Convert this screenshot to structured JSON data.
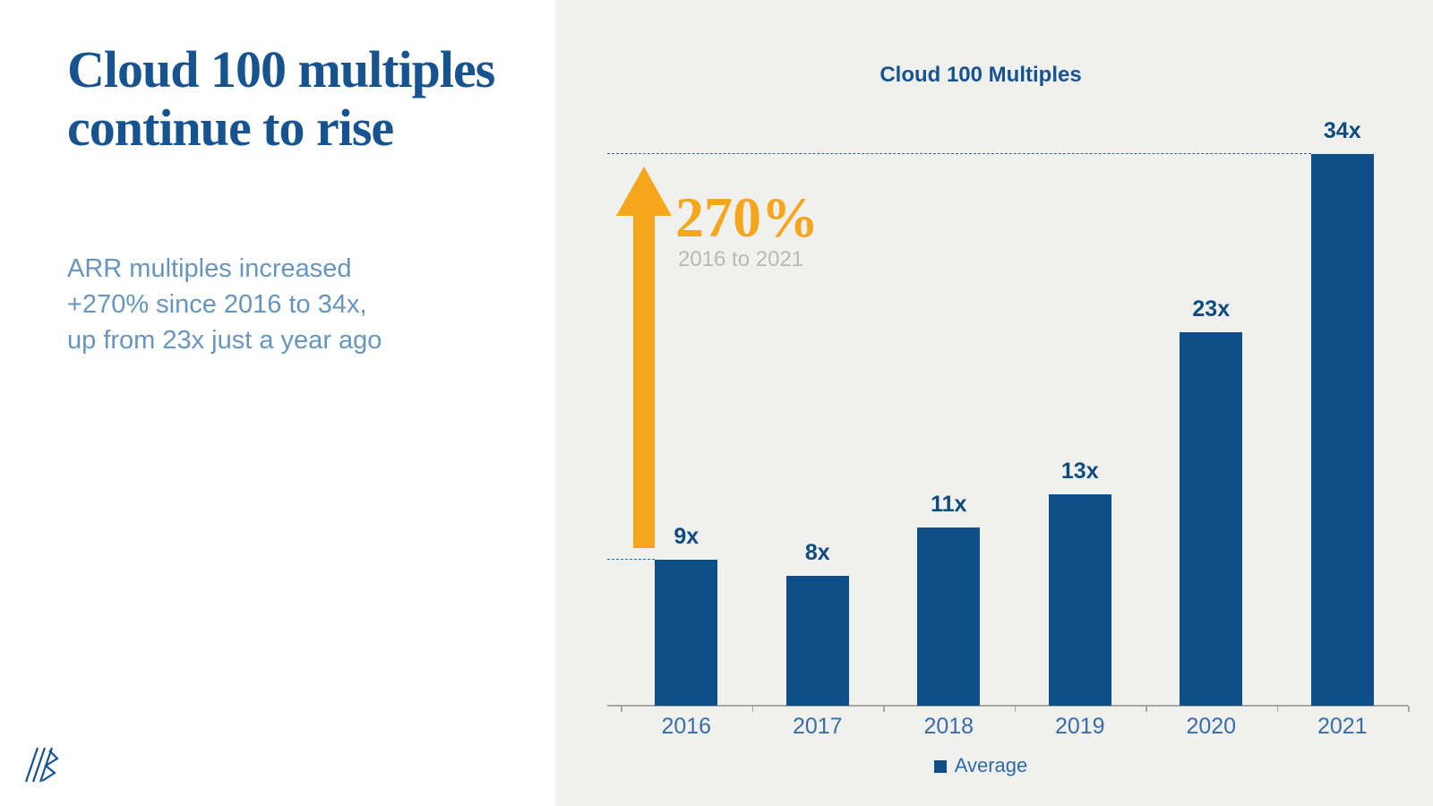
{
  "slide": {
    "title_lines": [
      "Cloud 100 multiples",
      "continue to rise"
    ],
    "body_lines": [
      "ARR multiples increased",
      "+270% since 2016 to 34x,",
      "up from 23x just a year ago"
    ]
  },
  "chart_data": {
    "type": "bar",
    "title": "Cloud 100 Multiples",
    "categories": [
      "2016",
      "2017",
      "2018",
      "2019",
      "2020",
      "2021"
    ],
    "series": [
      {
        "name": "Average",
        "values": [
          9,
          8,
          11,
          13,
          23,
          34
        ]
      }
    ],
    "value_labels": [
      "9x",
      "8x",
      "11x",
      "13x",
      "23x",
      "34x"
    ],
    "xlabel": "",
    "ylabel": "",
    "ylim": [
      0,
      34
    ],
    "grid": false,
    "legend_position": "bottom",
    "legend_label": "Average",
    "annotations": {
      "growth_percent": "270%",
      "growth_period": "2016 to 2021",
      "ref_line_values": [
        9,
        34
      ]
    }
  },
  "colors": {
    "bar": "#0d4f86",
    "title_blue": "#17548f",
    "body_blue": "#6795be",
    "value_label_blue": "#0e4c80",
    "axis_label_blue": "#3a6da6",
    "legend_blue": "#2f6ca6",
    "orange": "#f4a71d",
    "muted_gray": "#b9b9b7",
    "axis_gray": "#a6a6a4",
    "panel_bg": "#f0f0ee",
    "dashed_blue": "#2b6aa2"
  }
}
